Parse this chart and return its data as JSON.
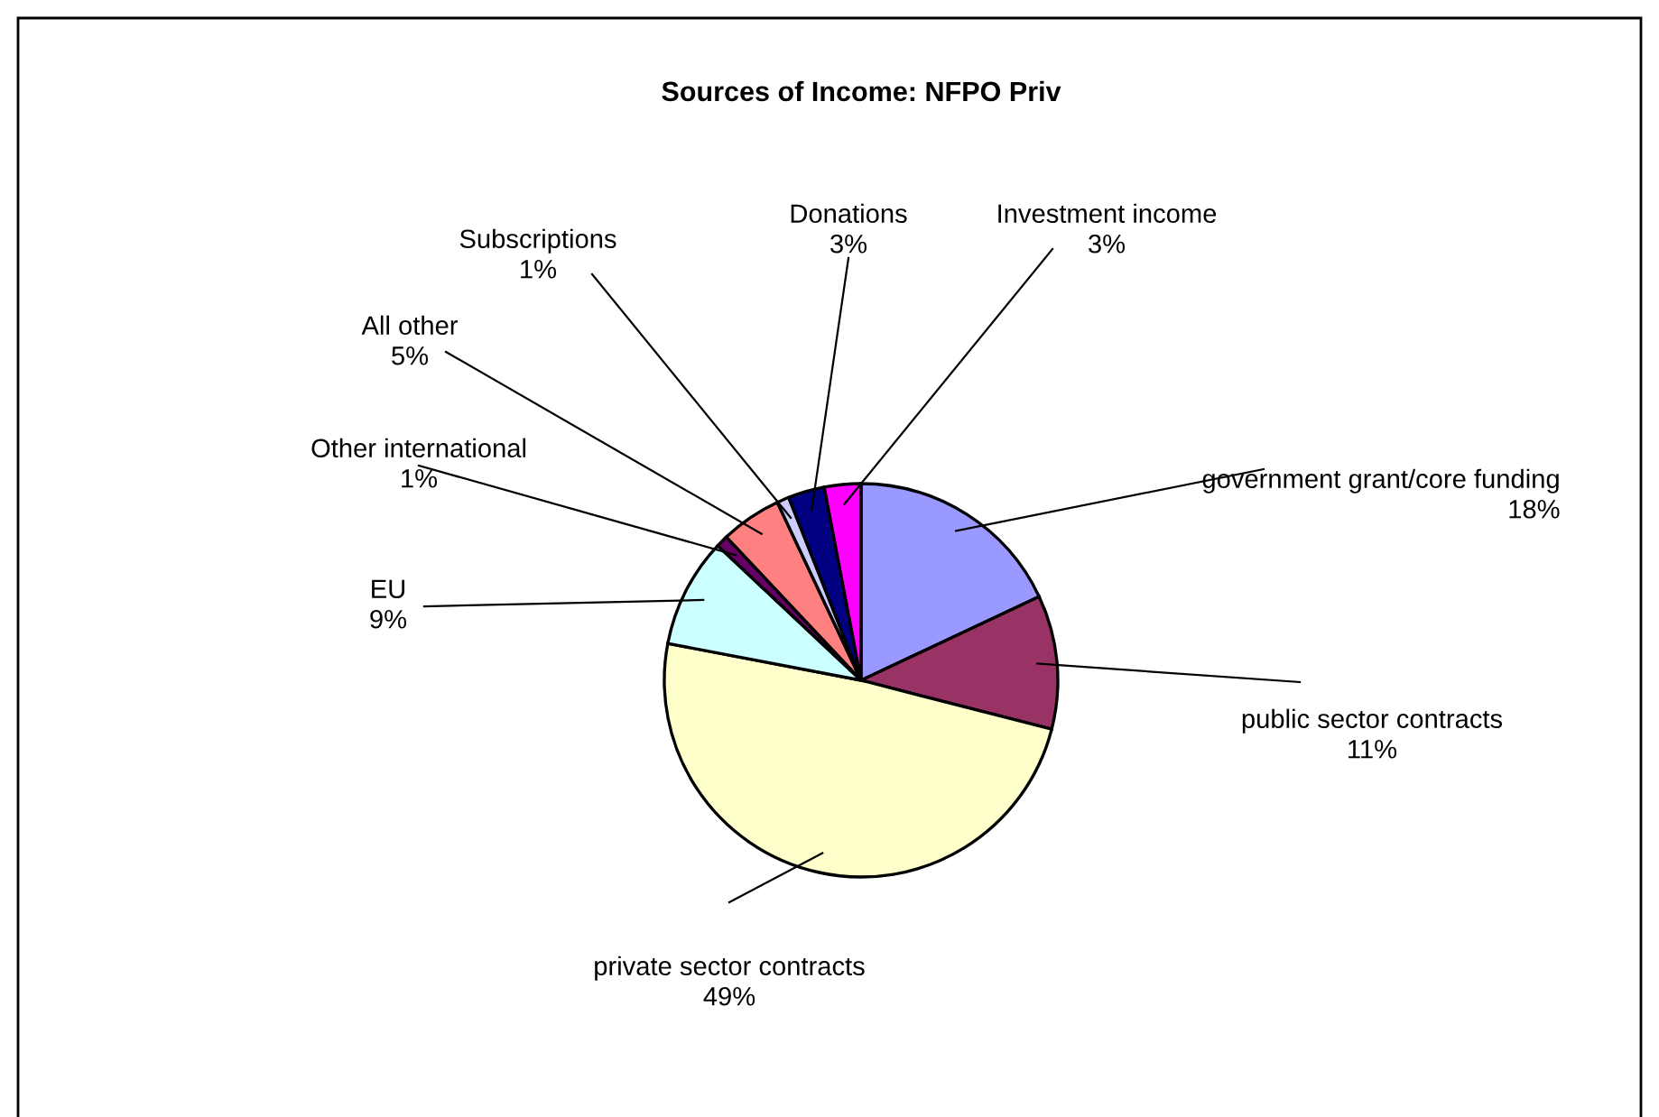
{
  "chart_data": {
    "type": "pie",
    "title": "Sources of Income: NFPO Priv",
    "categories": [
      "government grant/core funding",
      "public sector contracts",
      "private sector contracts",
      "EU",
      "Other international",
      "All other",
      "Subscriptions",
      "Donations",
      "Investment income"
    ],
    "values": [
      18,
      11,
      49,
      9,
      1,
      5,
      1,
      3,
      3
    ],
    "value_labels": [
      "18%",
      "11%",
      "49%",
      "9%",
      "1%",
      "5%",
      "1%",
      "3%",
      "3%"
    ],
    "colors": [
      "#9999ff",
      "#993366",
      "#ffffcc",
      "#ccffff",
      "#660066",
      "#ff8080",
      "#ccccff",
      "#000080",
      "#ff00ff"
    ],
    "legend": false
  }
}
